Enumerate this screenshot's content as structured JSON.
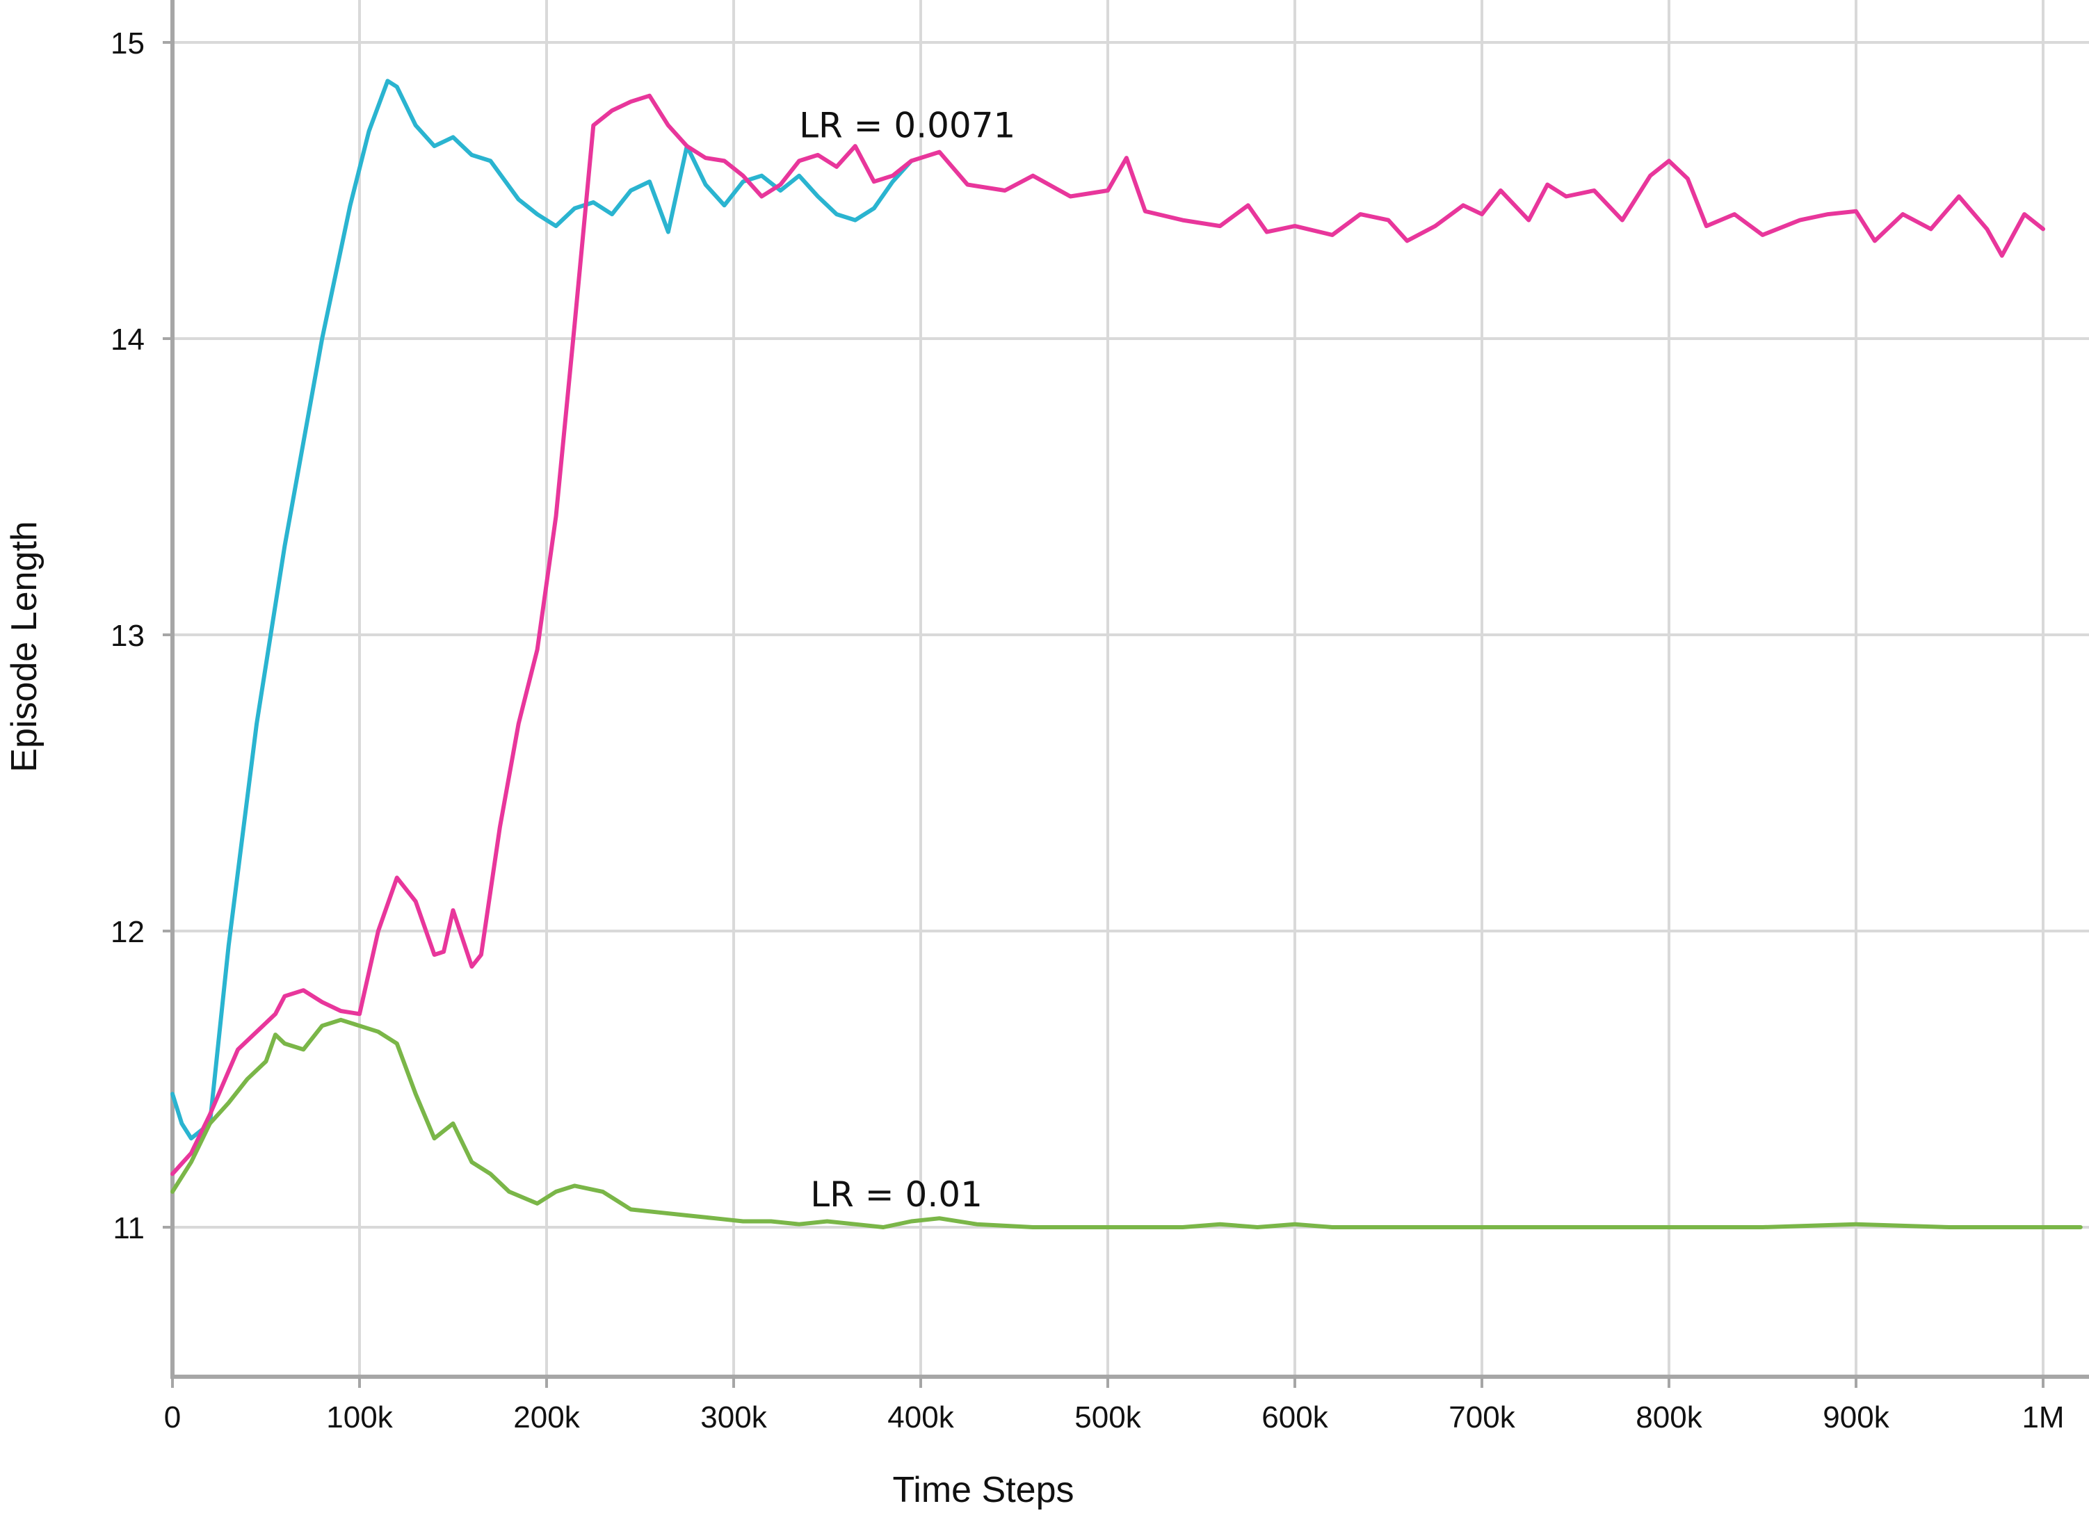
{
  "chart_data": {
    "type": "line",
    "title": "",
    "xlabel": "Time Steps",
    "ylabel": "Episode Length",
    "xlim": [
      0,
      1020000
    ],
    "ylim": [
      10.5,
      15.1
    ],
    "grid": true,
    "x_ticks": [
      {
        "value": 0,
        "label": "0"
      },
      {
        "value": 100000,
        "label": "100k"
      },
      {
        "value": 200000,
        "label": "200k"
      },
      {
        "value": 300000,
        "label": "300k"
      },
      {
        "value": 400000,
        "label": "400k"
      },
      {
        "value": 500000,
        "label": "500k"
      },
      {
        "value": 600000,
        "label": "600k"
      },
      {
        "value": 700000,
        "label": "700k"
      },
      {
        "value": 800000,
        "label": "800k"
      },
      {
        "value": 900000,
        "label": "900k"
      },
      {
        "value": 1000000,
        "label": "1M"
      }
    ],
    "y_ticks": [
      {
        "value": 11,
        "label": "11"
      },
      {
        "value": 12,
        "label": "12"
      },
      {
        "value": 13,
        "label": "13"
      },
      {
        "value": 14,
        "label": "14"
      },
      {
        "value": 15,
        "label": "15"
      }
    ],
    "annotations": [
      {
        "text": "LR = 0.0071",
        "x": 335000,
        "y": 14.68
      },
      {
        "text": "LR = 0.01",
        "x": 341000,
        "y": 11.07
      }
    ],
    "series": [
      {
        "color": "#2ab4d0",
        "x": [
          0,
          5000,
          10000,
          20000,
          30000,
          45000,
          60000,
          70000,
          80000,
          95000,
          105000,
          115000,
          120000,
          130000,
          140000,
          150000,
          160000,
          170000,
          185000,
          195000,
          205000,
          215000,
          225000,
          235000,
          245000,
          255000,
          265000,
          275000,
          285000,
          295000,
          305000,
          315000,
          325000,
          335000,
          345000,
          355000,
          365000,
          375000,
          385000,
          395000
        ],
        "y": [
          11.45,
          11.35,
          11.3,
          11.35,
          11.95,
          12.7,
          13.3,
          13.65,
          14.0,
          14.45,
          14.7,
          14.87,
          14.85,
          14.72,
          14.65,
          14.68,
          14.62,
          14.6,
          14.47,
          14.42,
          14.38,
          14.44,
          14.46,
          14.42,
          14.5,
          14.53,
          14.36,
          14.65,
          14.52,
          14.45,
          14.53,
          14.55,
          14.5,
          14.55,
          14.48,
          14.42,
          14.4,
          14.44,
          14.53,
          14.6
        ]
      },
      {
        "color": "#e8369b",
        "x": [
          0,
          10000,
          20000,
          35000,
          45000,
          55000,
          60000,
          70000,
          80000,
          90000,
          100000,
          110000,
          120000,
          130000,
          140000,
          145000,
          150000,
          160000,
          165000,
          175000,
          185000,
          195000,
          205000,
          215000,
          225000,
          235000,
          245000,
          255000,
          265000,
          275000,
          285000,
          295000,
          305000,
          315000,
          325000,
          335000,
          345000,
          355000,
          365000,
          375000,
          385000,
          395000,
          410000,
          425000,
          445000,
          460000,
          480000,
          500000,
          510000,
          520000,
          540000,
          560000,
          575000,
          585000,
          600000,
          620000,
          635000,
          650000,
          660000,
          675000,
          690000,
          700000,
          710000,
          725000,
          735000,
          745000,
          760000,
          775000,
          790000,
          800000,
          810000,
          820000,
          835000,
          850000,
          870000,
          885000,
          900000,
          910000,
          925000,
          940000,
          955000,
          970000,
          978000,
          990000,
          1000000
        ],
        "y": [
          11.18,
          11.25,
          11.38,
          11.6,
          11.66,
          11.72,
          11.78,
          11.8,
          11.76,
          11.73,
          11.72,
          12.0,
          12.18,
          12.1,
          11.92,
          11.93,
          12.07,
          11.88,
          11.92,
          12.35,
          12.7,
          12.95,
          13.4,
          14.05,
          14.72,
          14.77,
          14.8,
          14.82,
          14.72,
          14.65,
          14.61,
          14.6,
          14.55,
          14.48,
          14.52,
          14.6,
          14.62,
          14.58,
          14.65,
          14.53,
          14.55,
          14.6,
          14.63,
          14.52,
          14.5,
          14.55,
          14.48,
          14.5,
          14.61,
          14.43,
          14.4,
          14.38,
          14.45,
          14.36,
          14.38,
          14.35,
          14.42,
          14.4,
          14.33,
          14.38,
          14.45,
          14.42,
          14.5,
          14.4,
          14.52,
          14.48,
          14.5,
          14.4,
          14.55,
          14.6,
          14.54,
          14.38,
          14.42,
          14.35,
          14.4,
          14.42,
          14.43,
          14.33,
          14.42,
          14.37,
          14.48,
          14.37,
          14.28,
          14.42,
          14.37
        ]
      },
      {
        "color": "#7ab648",
        "x": [
          0,
          10000,
          20000,
          30000,
          40000,
          50000,
          55000,
          60000,
          70000,
          80000,
          90000,
          100000,
          110000,
          120000,
          130000,
          140000,
          150000,
          160000,
          170000,
          180000,
          195000,
          205000,
          215000,
          230000,
          245000,
          260000,
          275000,
          290000,
          305000,
          320000,
          335000,
          350000,
          365000,
          380000,
          395000,
          410000,
          430000,
          460000,
          500000,
          540000,
          560000,
          580000,
          600000,
          620000,
          650000,
          700000,
          750000,
          800000,
          850000,
          900000,
          950000,
          1000000,
          1020000
        ],
        "y": [
          11.12,
          11.22,
          11.35,
          11.42,
          11.5,
          11.56,
          11.65,
          11.62,
          11.6,
          11.68,
          11.7,
          11.68,
          11.66,
          11.62,
          11.45,
          11.3,
          11.35,
          11.22,
          11.18,
          11.12,
          11.08,
          11.12,
          11.14,
          11.12,
          11.06,
          11.05,
          11.04,
          11.03,
          11.02,
          11.02,
          11.01,
          11.02,
          11.01,
          11.0,
          11.02,
          11.03,
          11.01,
          11.0,
          11.0,
          11.0,
          11.01,
          11.0,
          11.01,
          11.0,
          11.0,
          11.0,
          11.0,
          11.0,
          11.0,
          11.01,
          11.0,
          11.0,
          11.0
        ]
      }
    ]
  }
}
